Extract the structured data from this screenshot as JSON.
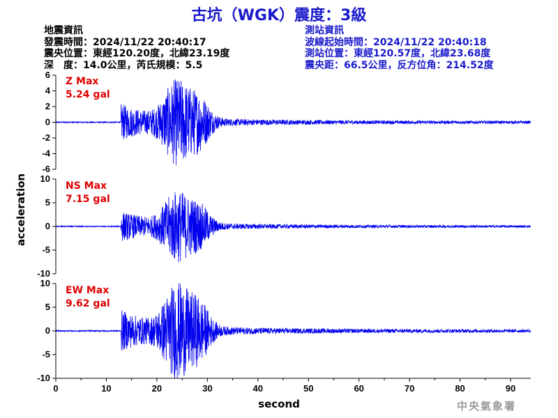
{
  "title": "古坑（WGK）震度：3級",
  "event_info": {
    "heading": "地震資訊",
    "origin_time": "發震時間：2024/11/22 20:40:17",
    "epicenter": "震央位置：東經120.20度，北緯23.19度",
    "depth_magnitude": "深　度：14.0公里，芮氏規模：5.5"
  },
  "station_info": {
    "heading": "測站資訊",
    "start_time": "波線起始時間：2024/11/22 20:40:18",
    "location": "測站位置：東經120.57度，北緯23.68度",
    "distance": "震央距：66.5公里，反方位角：214.52度"
  },
  "credit": "中央氣象署",
  "colors": {
    "title": "#1a1acc",
    "trace": "#0000ee",
    "max_label": "#e00000"
  },
  "chart_data": [
    {
      "type": "line",
      "component": "Z",
      "max_label": "Z Max",
      "max_value": "5.24 gal",
      "ylim": [
        -6,
        6
      ],
      "yticks": [
        -6,
        -4,
        -2,
        0,
        2,
        4,
        6
      ],
      "xlim": [
        0,
        94
      ],
      "arrival_s": 12.9,
      "peak_abs": 5.24
    },
    {
      "type": "line",
      "component": "NS",
      "max_label": "NS Max",
      "max_value": "7.15 gal",
      "ylim": [
        -10,
        10
      ],
      "yticks": [
        -10,
        -5,
        0,
        5,
        10
      ],
      "xlim": [
        0,
        94
      ],
      "arrival_s": 12.9,
      "peak_abs": 7.15
    },
    {
      "type": "line",
      "component": "EW",
      "max_label": "EW Max",
      "max_value": "9.62 gal",
      "ylim": [
        -10,
        10
      ],
      "yticks": [
        -10,
        -5,
        0,
        5,
        10
      ],
      "xlim": [
        0,
        94
      ],
      "arrival_s": 12.9,
      "peak_abs": 9.62
    }
  ],
  "axes": {
    "xlabel": "second",
    "ylabel": "acceleration",
    "xticks": [
      0,
      10,
      20,
      30,
      40,
      50,
      60,
      70,
      80,
      90
    ]
  }
}
